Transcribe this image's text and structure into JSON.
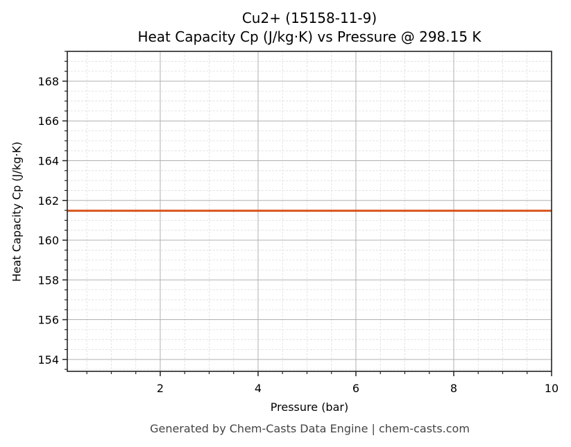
{
  "title": {
    "line1": "Cu2+ (15158-11-9)",
    "line2": "Heat Capacity Cp (J/kg·K) vs Pressure @ 298.15 K"
  },
  "axes": {
    "xlabel": "Pressure (bar)",
    "ylabel": "Heat Capacity Cp (J/kg·K)"
  },
  "footer": "Generated by Chem-Casts Data Engine | chem-casts.com",
  "colors": {
    "line": "#d9541e",
    "major_grid": "#b0b0b0",
    "minor_grid": "#dddddd",
    "spine": "#222222",
    "footer_text": "#444444"
  },
  "chart_data": {
    "type": "line",
    "title": "Cu2+ (15158-11-9) Heat Capacity Cp (J/kg·K) vs Pressure @ 298.15 K",
    "xlabel": "Pressure (bar)",
    "ylabel": "Heat Capacity Cp (J/kg·K)",
    "xlim": [
      0.1,
      10
    ],
    "ylim": [
      153.4,
      169.5
    ],
    "x_ticks": [
      2,
      4,
      6,
      8,
      10
    ],
    "y_ticks": [
      154,
      156,
      158,
      160,
      162,
      164,
      166,
      168
    ],
    "x_minor_step": 0.5,
    "y_minor_step": 0.5,
    "grid": {
      "major": true,
      "minor": true
    },
    "legend": null,
    "series": [
      {
        "name": "Cp",
        "color": "#d9541e",
        "x": [
          0.1,
          1,
          2,
          3,
          4,
          5,
          6,
          7,
          8,
          9,
          10
        ],
        "values": [
          161.48,
          161.48,
          161.48,
          161.48,
          161.48,
          161.48,
          161.48,
          161.48,
          161.48,
          161.48,
          161.48
        ]
      }
    ]
  }
}
